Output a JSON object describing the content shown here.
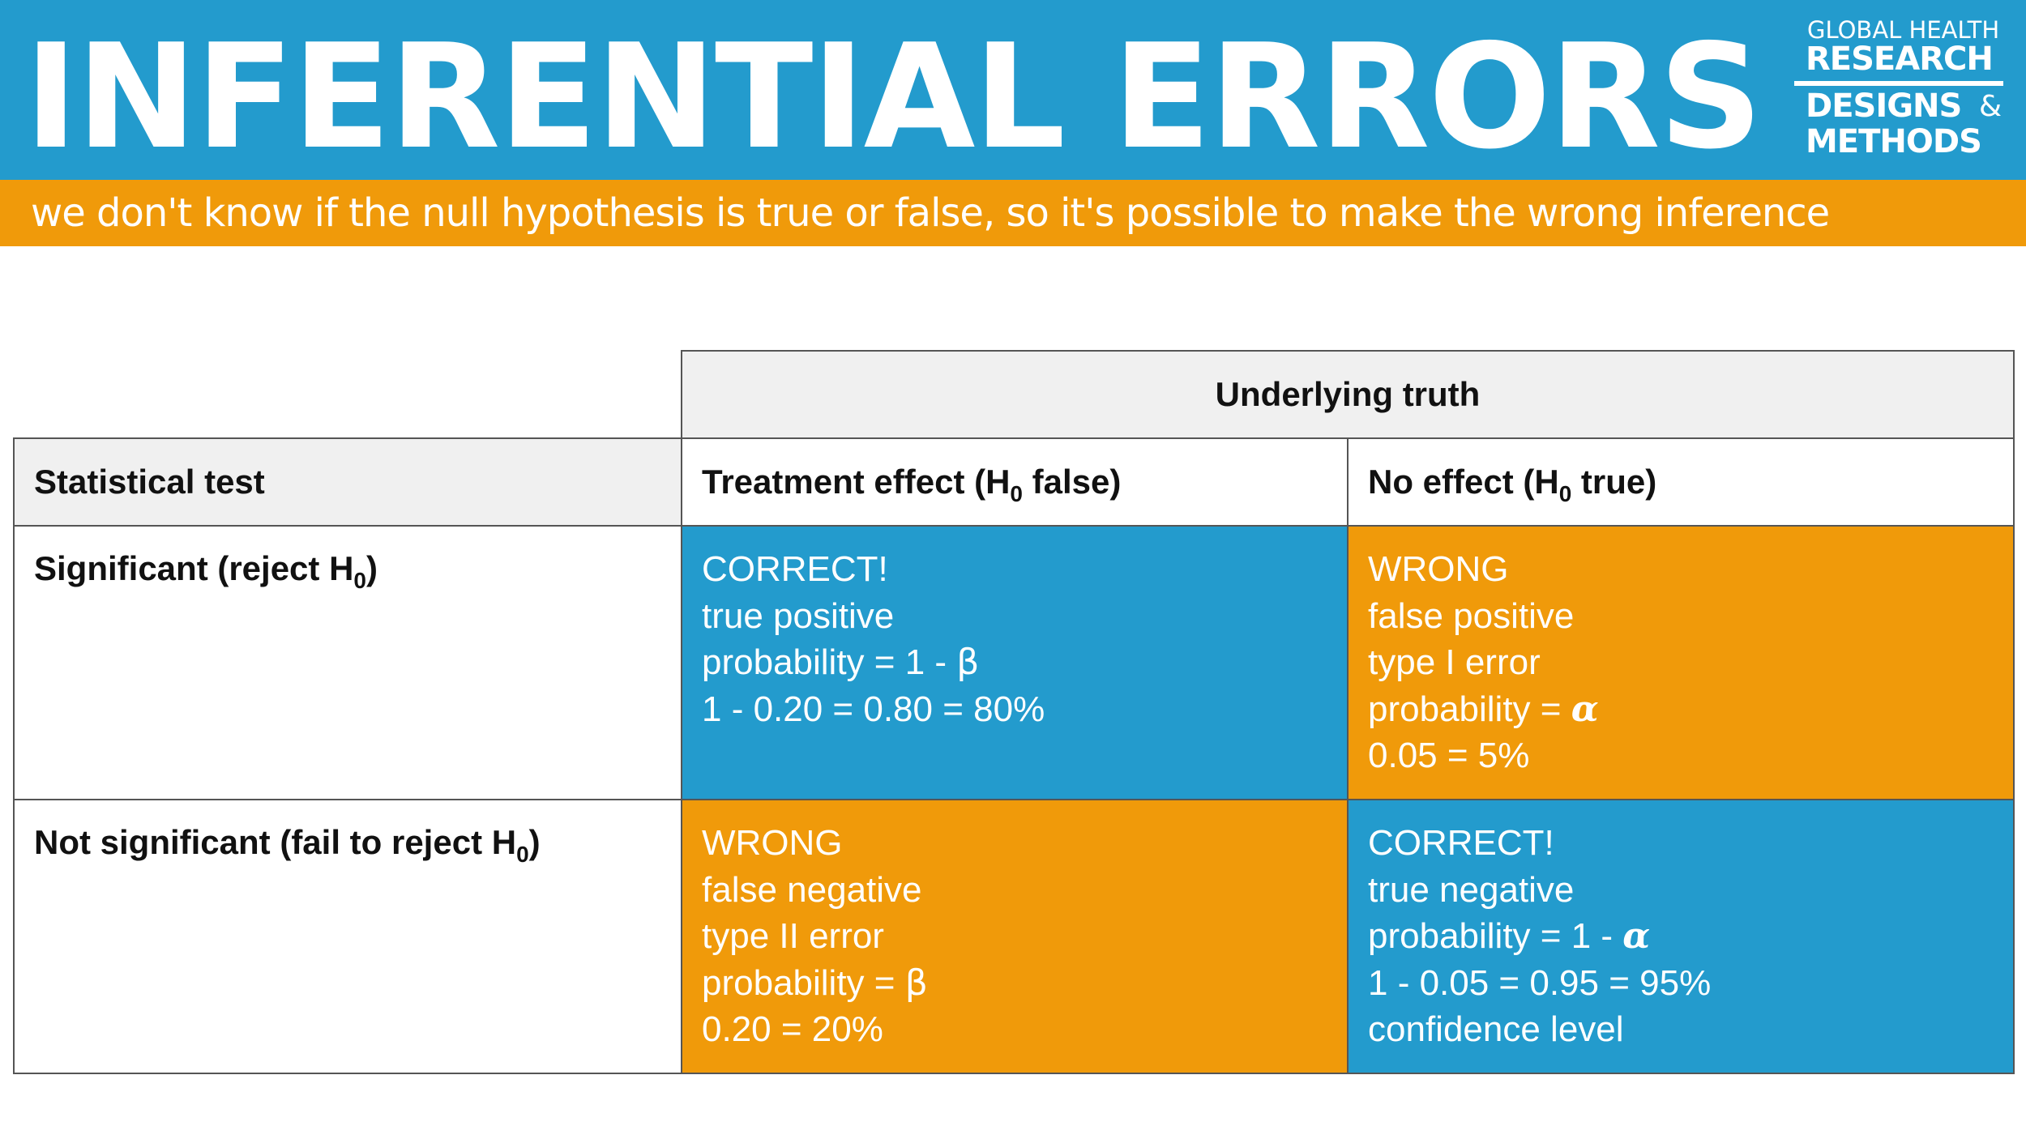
{
  "header": {
    "title": "INFERENTIAL ERRORS",
    "logo": {
      "line1": "GLOBAL HEALTH",
      "line2": "RESEARCH",
      "line3": "DESIGNS",
      "ampersand": "&",
      "line4": "METHODS"
    },
    "subtitle": "we don't know if the null hypothesis is true or false, so it's possible to make the wrong inference"
  },
  "colors": {
    "blue": "#239bcd",
    "orange": "#f09a0a",
    "header_gray": "#f0f0f0"
  },
  "table": {
    "truth_header": "Underlying truth",
    "row_header_label": "Statistical test",
    "col1": {
      "label_a": "Treatment effect (H",
      "sub": "0",
      "label_b": " false)"
    },
    "col2": {
      "label_a": "No effect (H",
      "sub": "0",
      "label_b": " true)"
    },
    "row1": {
      "label_a": "Significant (reject H",
      "sub": "0",
      "label_b": ")"
    },
    "row2": {
      "label_a": "Not significant (fail to reject H",
      "sub": "0",
      "label_b": ")"
    },
    "cells": {
      "r1c1": {
        "line1": "CORRECT!",
        "line2": "true positive",
        "line3_prefix": "probability = 1 - ",
        "line3_symbol": "β",
        "line4": "1 - 0.20 = 0.80 = 80%"
      },
      "r1c2": {
        "line1": "WRONG",
        "line2": "false positive",
        "line3": "type I error",
        "line4_prefix": "probability = ",
        "line4_symbol": "α",
        "line5": "0.05 = 5%"
      },
      "r2c1": {
        "line1": "WRONG",
        "line2": "false negative",
        "line3": "type II error",
        "line4_prefix": "probability = ",
        "line4_symbol": "β",
        "line5": "0.20 = 20%"
      },
      "r2c2": {
        "line1": "CORRECT!",
        "line2": "true negative",
        "line3_prefix": "probability = 1 - ",
        "line3_symbol": "α",
        "line4": "1 - 0.05 = 0.95 = 95%",
        "line5": "confidence level"
      }
    }
  }
}
